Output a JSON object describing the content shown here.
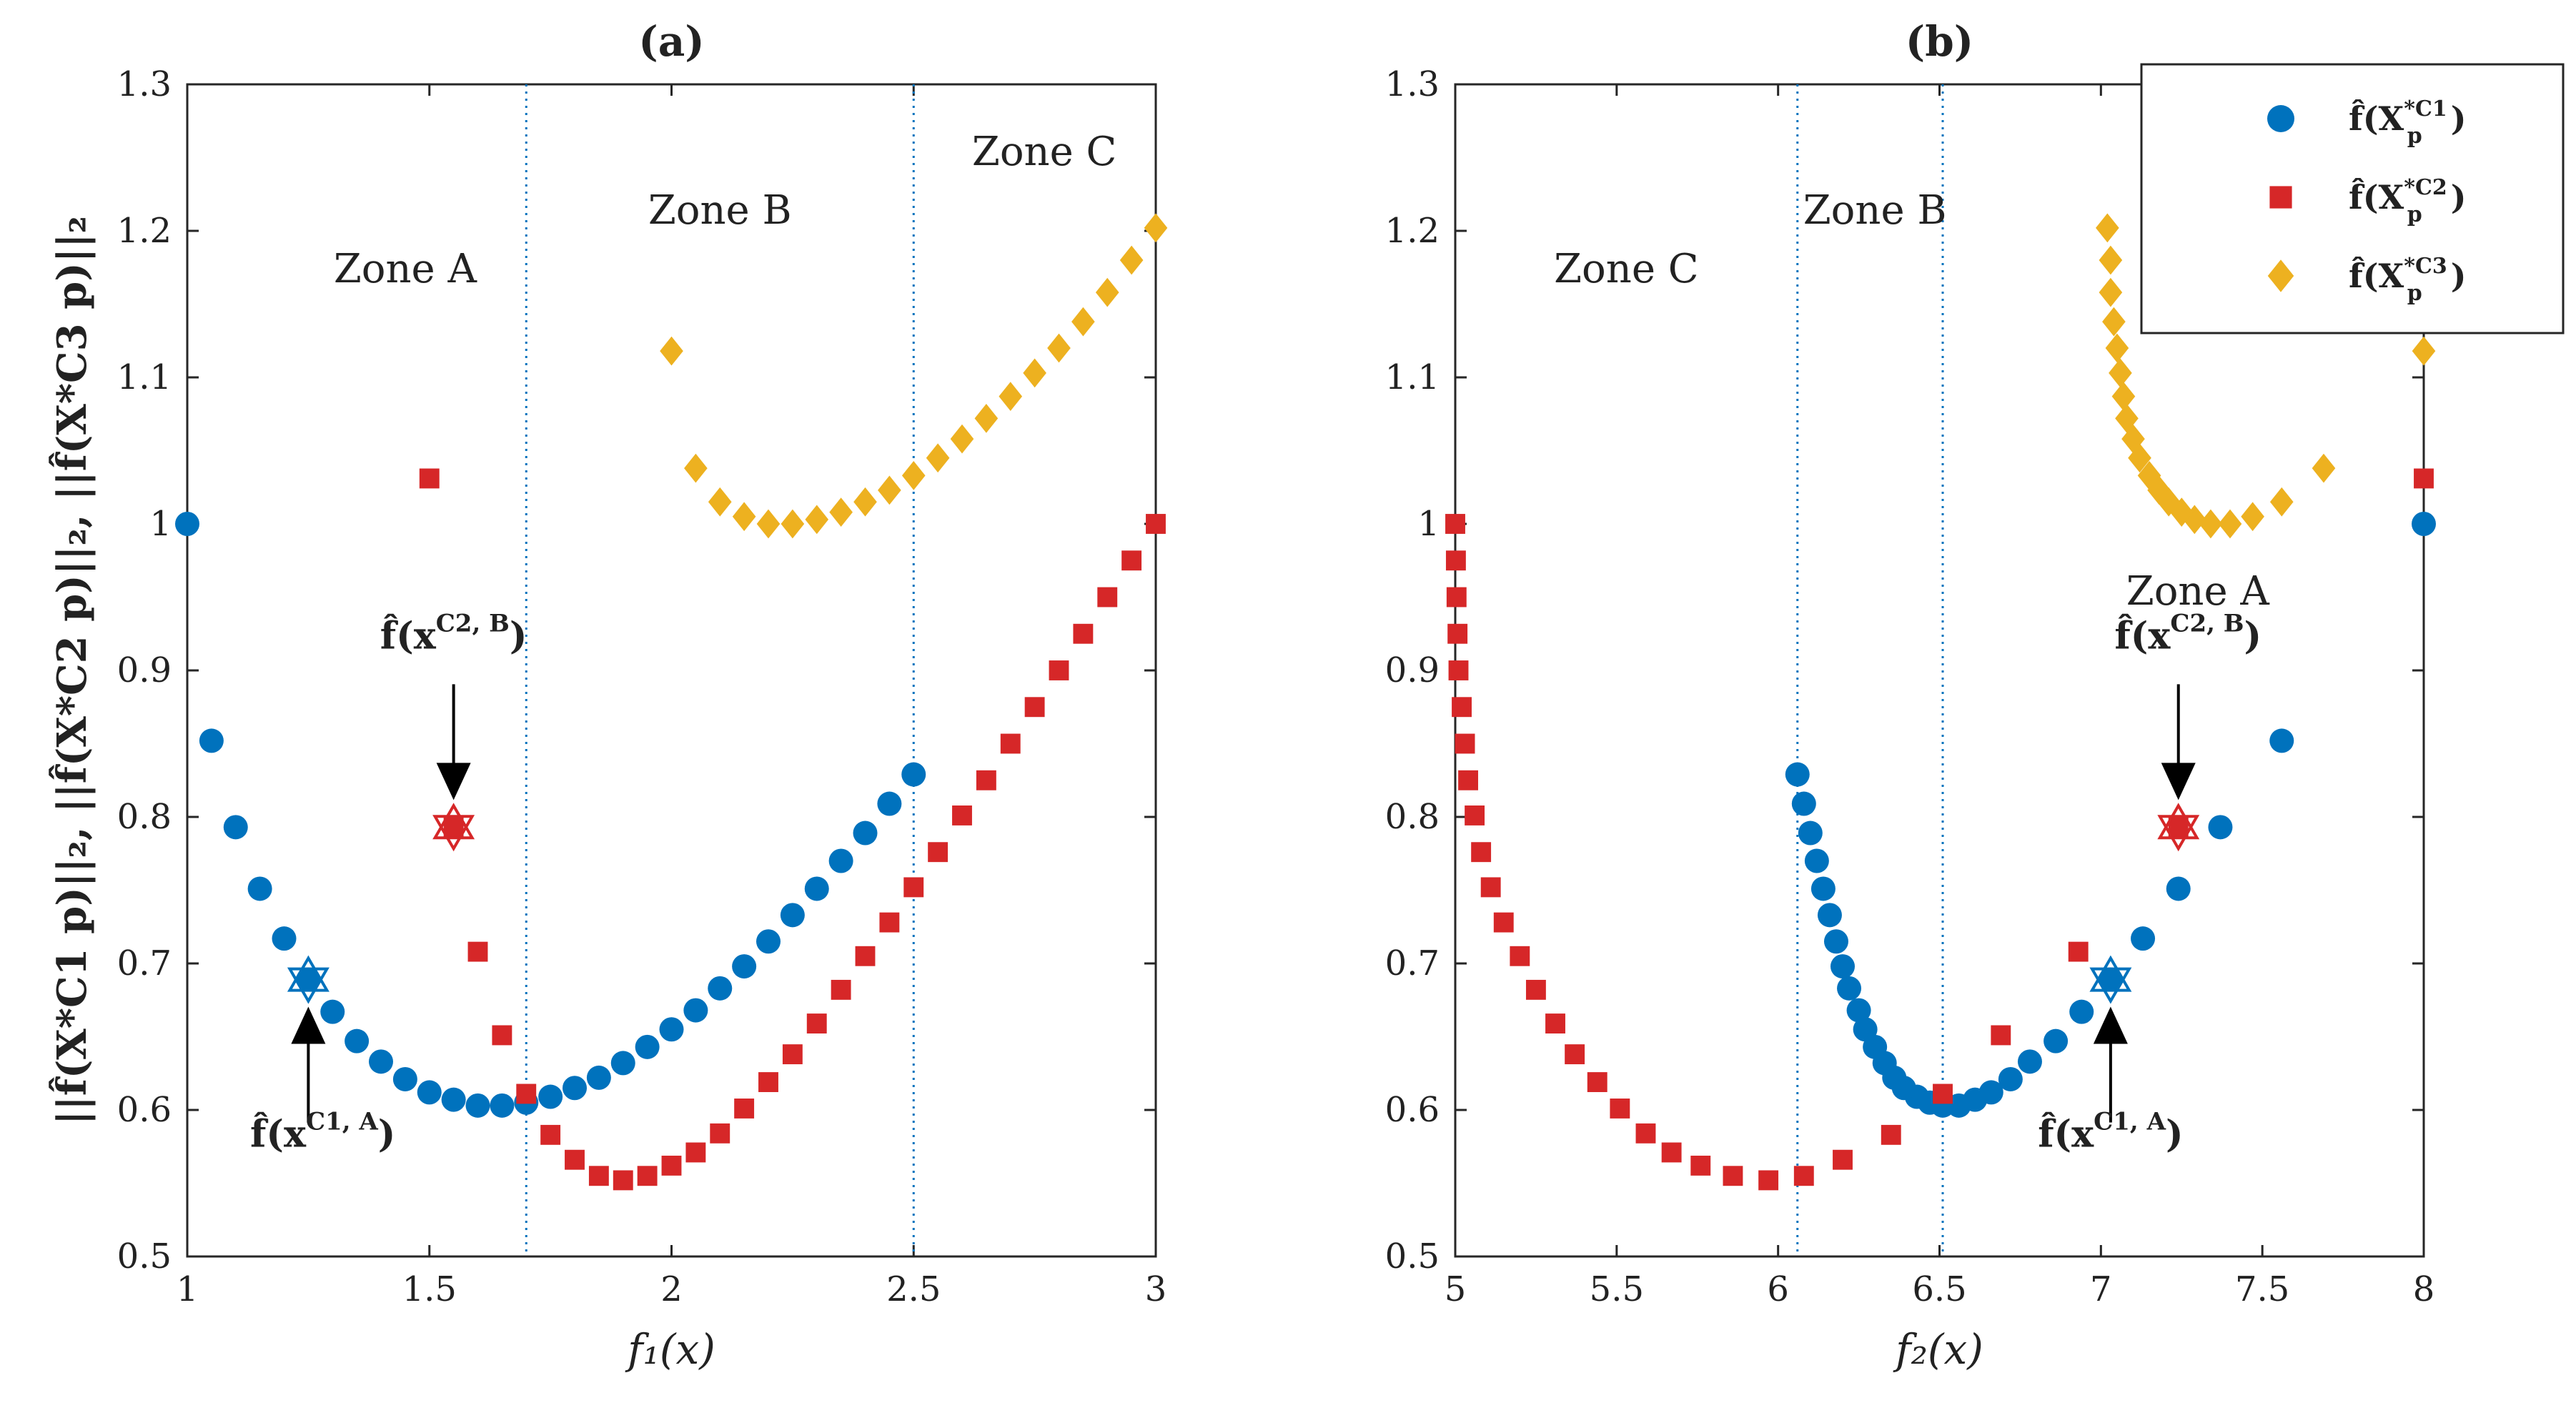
{
  "chart_data": [
    {
      "type": "scatter",
      "title": "(a)",
      "xlabel": "f₁(x)",
      "ylabel": "||f̂(X*C1 p)||₂,  ||f̂(X*C2 p)||₂,  ||f̂(X*C3 p)||₂",
      "xlim": [
        1,
        3
      ],
      "ylim": [
        0.5,
        1.3
      ],
      "xticks": [
        "1",
        "1.5",
        "2",
        "2.5",
        "3"
      ],
      "yticks": [
        "0.5",
        "0.6",
        "0.7",
        "0.8",
        "0.9",
        "1",
        "1.1",
        "1.2",
        "1.3"
      ],
      "vlines": [
        1.7,
        2.5
      ],
      "zones": [
        {
          "label": "Zone A",
          "x": 1.45,
          "y": 1.165
        },
        {
          "label": "Zone B",
          "x": 2.1,
          "y": 1.205
        },
        {
          "label": "Zone C",
          "x": 2.77,
          "y": 1.245
        }
      ],
      "series": [
        {
          "name": "C1",
          "marker": "circle",
          "color": "#0072BD",
          "x": [
            1.0,
            1.05,
            1.1,
            1.15,
            1.2,
            1.25,
            1.3,
            1.35,
            1.4,
            1.45,
            1.5,
            1.55,
            1.6,
            1.65,
            1.7,
            1.75,
            1.8,
            1.85,
            1.9,
            1.95,
            2.0,
            2.05,
            2.1,
            2.15,
            2.2,
            2.25,
            2.3,
            2.35,
            2.4,
            2.45,
            2.5
          ],
          "y": [
            1.0,
            0.852,
            0.793,
            0.751,
            0.717,
            0.689,
            0.667,
            0.647,
            0.633,
            0.621,
            0.612,
            0.607,
            0.603,
            0.603,
            0.605,
            0.609,
            0.615,
            0.622,
            0.632,
            0.643,
            0.655,
            0.668,
            0.683,
            0.698,
            0.715,
            0.733,
            0.751,
            0.77,
            0.789,
            0.809,
            0.829
          ]
        },
        {
          "name": "C2",
          "marker": "square",
          "color": "#D62728",
          "x": [
            1.5,
            1.55,
            1.6,
            1.65,
            1.7,
            1.75,
            1.8,
            1.85,
            1.9,
            1.95,
            2.0,
            2.05,
            2.1,
            2.15,
            2.2,
            2.25,
            2.3,
            2.35,
            2.4,
            2.45,
            2.5,
            2.55,
            2.6,
            2.65,
            2.7,
            2.75,
            2.8,
            2.85,
            2.9,
            2.95,
            3.0
          ],
          "y": [
            1.031,
            0.793,
            0.708,
            0.651,
            0.611,
            0.583,
            0.566,
            0.555,
            0.552,
            0.555,
            0.562,
            0.571,
            0.584,
            0.601,
            0.619,
            0.638,
            0.659,
            0.682,
            0.705,
            0.728,
            0.752,
            0.776,
            0.801,
            0.825,
            0.85,
            0.875,
            0.9,
            0.925,
            0.95,
            0.975,
            1.0
          ]
        },
        {
          "name": "C3",
          "marker": "diamond",
          "color": "#EDB120",
          "x": [
            2.0,
            2.05,
            2.1,
            2.15,
            2.2,
            2.25,
            2.3,
            2.35,
            2.4,
            2.45,
            2.5,
            2.55,
            2.6,
            2.65,
            2.7,
            2.75,
            2.8,
            2.85,
            2.9,
            2.95,
            3.0
          ],
          "y": [
            1.118,
            1.038,
            1.015,
            1.005,
            1.0,
            1.0,
            1.003,
            1.008,
            1.015,
            1.023,
            1.033,
            1.045,
            1.058,
            1.072,
            1.087,
            1.103,
            1.12,
            1.138,
            1.158,
            1.18,
            1.202
          ]
        }
      ],
      "annotations": [
        {
          "label": "f̂(x",
          "sup": "C2, B",
          "close": ")",
          "target_x": 1.55,
          "target_y": 0.793,
          "marker": "hexagram",
          "color": "#D62728",
          "text_x": 1.55,
          "text_y": 0.915,
          "arrow": "down"
        },
        {
          "label": "f̂(x",
          "sup": "C1, A",
          "close": ")",
          "target_x": 1.25,
          "target_y": 0.689,
          "marker": "hexagram",
          "color": "#0072BD",
          "text_x": 1.28,
          "text_y": 0.575,
          "arrow": "up"
        }
      ]
    },
    {
      "type": "scatter",
      "title": "(b)",
      "xlabel": "f₂(x)",
      "xlim": [
        5,
        8
      ],
      "ylim": [
        0.5,
        1.3
      ],
      "xticks": [
        "5",
        "5.5",
        "6",
        "6.5",
        "7",
        "7.5",
        "8"
      ],
      "yticks": [
        "0.5",
        "0.6",
        "0.7",
        "0.8",
        "0.9",
        "1",
        "1.1",
        "1.2",
        "1.3"
      ],
      "vlines": [
        6.06,
        6.51
      ],
      "zones": [
        {
          "label": "Zone C",
          "x": 5.53,
          "y": 1.165
        },
        {
          "label": "Zone B",
          "x": 6.3,
          "y": 1.205
        },
        {
          "label": "Zone A",
          "x": 7.3,
          "y": 0.945
        }
      ],
      "series": [
        {
          "name": "C1",
          "marker": "circle",
          "color": "#0072BD",
          "x": [
            8.0,
            7.56,
            7.37,
            7.24,
            7.13,
            7.03,
            6.94,
            6.86,
            6.78,
            6.72,
            6.66,
            6.61,
            6.56,
            6.51,
            6.47,
            6.43,
            6.39,
            6.36,
            6.33,
            6.3,
            6.27,
            6.25,
            6.22,
            6.2,
            6.18,
            6.16,
            6.14,
            6.12,
            6.1,
            6.08,
            6.06
          ],
          "y": [
            1.0,
            0.852,
            0.793,
            0.751,
            0.717,
            0.689,
            0.667,
            0.647,
            0.633,
            0.621,
            0.612,
            0.607,
            0.603,
            0.603,
            0.605,
            0.609,
            0.615,
            0.622,
            0.632,
            0.643,
            0.655,
            0.668,
            0.683,
            0.698,
            0.715,
            0.733,
            0.751,
            0.77,
            0.789,
            0.809,
            0.829
          ]
        },
        {
          "name": "C2",
          "marker": "square",
          "color": "#D62728",
          "x": [
            8.0,
            7.24,
            6.93,
            6.69,
            6.51,
            6.35,
            6.2,
            6.08,
            5.97,
            5.86,
            5.76,
            5.67,
            5.59,
            5.51,
            5.44,
            5.37,
            5.31,
            5.25,
            5.2,
            5.15,
            5.11,
            5.08,
            5.06,
            5.04,
            5.03,
            5.02,
            5.01,
            5.007,
            5.004,
            5.002,
            5.0
          ],
          "y": [
            1.031,
            0.793,
            0.708,
            0.651,
            0.611,
            0.583,
            0.566,
            0.555,
            0.552,
            0.555,
            0.562,
            0.571,
            0.584,
            0.601,
            0.619,
            0.638,
            0.659,
            0.682,
            0.705,
            0.728,
            0.752,
            0.776,
            0.801,
            0.825,
            0.85,
            0.875,
            0.9,
            0.925,
            0.95,
            0.975,
            1.0
          ]
        },
        {
          "name": "C3",
          "marker": "diamond",
          "color": "#EDB120",
          "x": [
            8.0,
            7.69,
            7.56,
            7.47,
            7.4,
            7.34,
            7.29,
            7.25,
            7.21,
            7.18,
            7.15,
            7.12,
            7.1,
            7.08,
            7.07,
            7.06,
            7.05,
            7.04,
            7.03,
            7.03,
            7.02
          ],
          "y": [
            1.118,
            1.038,
            1.015,
            1.005,
            1.0,
            1.0,
            1.003,
            1.008,
            1.015,
            1.023,
            1.033,
            1.045,
            1.058,
            1.072,
            1.087,
            1.103,
            1.12,
            1.138,
            1.158,
            1.18,
            1.202
          ]
        }
      ],
      "annotations": [
        {
          "label": "f̂(x",
          "sup": "C2, B",
          "close": ")",
          "target_x": 7.24,
          "target_y": 0.793,
          "marker": "hexagram",
          "color": "#D62728",
          "text_x": 7.27,
          "text_y": 0.915,
          "arrow": "down"
        },
        {
          "label": "f̂(x",
          "sup": "C1, A",
          "close": ")",
          "target_x": 7.03,
          "target_y": 0.689,
          "marker": "hexagram",
          "color": "#0072BD",
          "text_x": 7.03,
          "text_y": 0.575,
          "arrow": "up"
        }
      ]
    }
  ],
  "legend": {
    "position": "top-right",
    "entries": [
      {
        "label": "f̂(X",
        "sub": "p",
        "sup": "*C1",
        "close": ")",
        "marker": "circle",
        "color": "#0072BD"
      },
      {
        "label": "f̂(X",
        "sub": "p",
        "sup": "*C2",
        "close": ")",
        "marker": "square",
        "color": "#D62728"
      },
      {
        "label": "f̂(X",
        "sub": "p",
        "sup": "*C3",
        "close": ")",
        "marker": "diamond",
        "color": "#EDB120"
      }
    ]
  }
}
